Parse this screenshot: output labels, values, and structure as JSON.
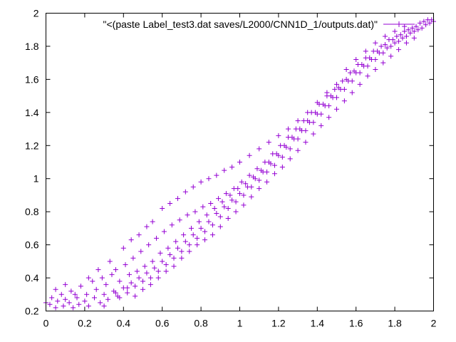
{
  "chart_data": {
    "type": "scatter",
    "title": "",
    "xlabel": "",
    "ylabel": "",
    "xlim": [
      0,
      2
    ],
    "ylim": [
      0.2,
      2
    ],
    "x_ticks": [
      "0",
      "0.2",
      "0.4",
      "0.6",
      "0.8",
      "1",
      "1.2",
      "1.4",
      "1.6",
      "1.8",
      "2"
    ],
    "y_ticks": [
      "0.2",
      "0.4",
      "0.6",
      "0.8",
      "1",
      "1.2",
      "1.4",
      "1.6",
      "1.8",
      "2"
    ],
    "grid": false,
    "legend_position": "top-left",
    "series": [
      {
        "name": "\"<(paste Label_test3.dat saves/L2000/CNN1D_1/outputs.dat)\"",
        "color": "#9400d3",
        "marker": "plus",
        "points": [
          [
            0.0,
            0.25
          ],
          [
            0.02,
            0.24
          ],
          [
            0.03,
            0.28
          ],
          [
            0.05,
            0.22
          ],
          [
            0.06,
            0.26
          ],
          [
            0.08,
            0.3
          ],
          [
            0.09,
            0.23
          ],
          [
            0.1,
            0.27
          ],
          [
            0.12,
            0.25
          ],
          [
            0.13,
            0.32
          ],
          [
            0.14,
            0.22
          ],
          [
            0.16,
            0.28
          ],
          [
            0.17,
            0.24
          ],
          [
            0.18,
            0.35
          ],
          [
            0.2,
            0.26
          ],
          [
            0.21,
            0.3
          ],
          [
            0.22,
            0.23
          ],
          [
            0.24,
            0.38
          ],
          [
            0.25,
            0.28
          ],
          [
            0.26,
            0.33
          ],
          [
            0.28,
            0.25
          ],
          [
            0.29,
            0.4
          ],
          [
            0.3,
            0.3
          ],
          [
            0.31,
            0.36
          ],
          [
            0.32,
            0.27
          ],
          [
            0.34,
            0.42
          ],
          [
            0.35,
            0.32
          ],
          [
            0.36,
            0.45
          ],
          [
            0.37,
            0.29
          ],
          [
            0.38,
            0.38
          ],
          [
            0.4,
            0.34
          ],
          [
            0.41,
            0.48
          ],
          [
            0.42,
            0.31
          ],
          [
            0.43,
            0.42
          ],
          [
            0.44,
            0.37
          ],
          [
            0.45,
            0.52
          ],
          [
            0.46,
            0.35
          ],
          [
            0.47,
            0.44
          ],
          [
            0.48,
            0.4
          ],
          [
            0.49,
            0.56
          ],
          [
            0.5,
            0.38
          ],
          [
            0.51,
            0.47
          ],
          [
            0.52,
            0.43
          ],
          [
            0.53,
            0.6
          ],
          [
            0.54,
            0.4
          ],
          [
            0.55,
            0.5
          ],
          [
            0.56,
            0.46
          ],
          [
            0.57,
            0.64
          ],
          [
            0.58,
            0.44
          ],
          [
            0.59,
            0.55
          ],
          [
            0.6,
            0.5
          ],
          [
            0.61,
            0.68
          ],
          [
            0.62,
            0.48
          ],
          [
            0.63,
            0.58
          ],
          [
            0.64,
            0.54
          ],
          [
            0.65,
            0.72
          ],
          [
            0.66,
            0.52
          ],
          [
            0.67,
            0.62
          ],
          [
            0.68,
            0.58
          ],
          [
            0.69,
            0.75
          ],
          [
            0.7,
            0.56
          ],
          [
            0.71,
            0.66
          ],
          [
            0.72,
            0.62
          ],
          [
            0.73,
            0.78
          ],
          [
            0.74,
            0.6
          ],
          [
            0.75,
            0.7
          ],
          [
            0.76,
            0.66
          ],
          [
            0.77,
            0.8
          ],
          [
            0.78,
            0.64
          ],
          [
            0.79,
            0.74
          ],
          [
            0.8,
            0.7
          ],
          [
            0.81,
            0.83
          ],
          [
            0.82,
            0.68
          ],
          [
            0.83,
            0.78
          ],
          [
            0.84,
            0.74
          ],
          [
            0.85,
            0.85
          ],
          [
            0.86,
            0.72
          ],
          [
            0.87,
            0.82
          ],
          [
            0.88,
            0.79
          ],
          [
            0.89,
            0.88
          ],
          [
            0.9,
            0.77
          ],
          [
            0.91,
            0.86
          ],
          [
            0.92,
            0.83
          ],
          [
            0.93,
            0.91
          ],
          [
            0.94,
            0.82
          ],
          [
            0.95,
            0.9
          ],
          [
            0.96,
            0.87
          ],
          [
            0.97,
            0.94
          ],
          [
            0.98,
            0.86
          ],
          [
            0.99,
            0.94
          ],
          [
            1.0,
            0.91
          ],
          [
            1.01,
            0.98
          ],
          [
            1.02,
            0.9
          ],
          [
            1.03,
            0.97
          ],
          [
            1.04,
            0.95
          ],
          [
            1.05,
            1.02
          ],
          [
            1.06,
            0.95
          ],
          [
            1.07,
            1.01
          ],
          [
            1.08,
            1.0
          ],
          [
            1.09,
            1.06
          ],
          [
            1.1,
            0.99
          ],
          [
            1.11,
            1.05
          ],
          [
            1.12,
            1.04
          ],
          [
            1.13,
            1.1
          ],
          [
            1.14,
            1.04
          ],
          [
            1.15,
            1.1
          ],
          [
            1.16,
            1.09
          ],
          [
            1.17,
            1.15
          ],
          [
            1.18,
            1.08
          ],
          [
            1.19,
            1.15
          ],
          [
            1.2,
            1.14
          ],
          [
            1.21,
            1.2
          ],
          [
            1.22,
            1.13
          ],
          [
            1.23,
            1.2
          ],
          [
            1.24,
            1.19
          ],
          [
            1.25,
            1.25
          ],
          [
            1.26,
            1.18
          ],
          [
            1.27,
            1.25
          ],
          [
            1.28,
            1.24
          ],
          [
            1.29,
            1.3
          ],
          [
            1.3,
            1.24
          ],
          [
            1.31,
            1.3
          ],
          [
            1.32,
            1.29
          ],
          [
            1.33,
            1.35
          ],
          [
            1.34,
            1.29
          ],
          [
            1.35,
            1.35
          ],
          [
            1.36,
            1.34
          ],
          [
            1.37,
            1.4
          ],
          [
            1.38,
            1.34
          ],
          [
            1.39,
            1.4
          ],
          [
            1.4,
            1.39
          ],
          [
            1.41,
            1.45
          ],
          [
            1.42,
            1.39
          ],
          [
            1.43,
            1.45
          ],
          [
            1.44,
            1.44
          ],
          [
            1.45,
            1.5
          ],
          [
            1.46,
            1.44
          ],
          [
            1.47,
            1.5
          ],
          [
            1.48,
            1.49
          ],
          [
            1.49,
            1.54
          ],
          [
            1.5,
            1.49
          ],
          [
            1.51,
            1.55
          ],
          [
            1.52,
            1.54
          ],
          [
            1.53,
            1.59
          ],
          [
            1.54,
            1.54
          ],
          [
            1.55,
            1.6
          ],
          [
            1.56,
            1.59
          ],
          [
            1.57,
            1.64
          ],
          [
            1.58,
            1.59
          ],
          [
            1.59,
            1.65
          ],
          [
            1.6,
            1.64
          ],
          [
            1.61,
            1.69
          ],
          [
            1.62,
            1.64
          ],
          [
            1.63,
            1.69
          ],
          [
            1.64,
            1.68
          ],
          [
            1.65,
            1.73
          ],
          [
            1.66,
            1.68
          ],
          [
            1.67,
            1.73
          ],
          [
            1.68,
            1.72
          ],
          [
            1.69,
            1.77
          ],
          [
            1.7,
            1.72
          ],
          [
            1.71,
            1.77
          ],
          [
            1.72,
            1.76
          ],
          [
            1.73,
            1.8
          ],
          [
            1.74,
            1.76
          ],
          [
            1.75,
            1.81
          ],
          [
            1.76,
            1.79
          ],
          [
            1.77,
            1.84
          ],
          [
            1.78,
            1.8
          ],
          [
            1.79,
            1.84
          ],
          [
            1.8,
            1.82
          ],
          [
            1.81,
            1.86
          ],
          [
            1.82,
            1.83
          ],
          [
            1.83,
            1.87
          ],
          [
            1.84,
            1.85
          ],
          [
            1.85,
            1.89
          ],
          [
            1.86,
            1.86
          ],
          [
            1.87,
            1.9
          ],
          [
            1.88,
            1.88
          ],
          [
            1.89,
            1.91
          ],
          [
            1.9,
            1.89
          ],
          [
            1.91,
            1.92
          ],
          [
            1.92,
            1.9
          ],
          [
            1.93,
            1.94
          ],
          [
            1.94,
            1.91
          ],
          [
            1.95,
            1.95
          ],
          [
            1.96,
            1.93
          ],
          [
            1.97,
            1.96
          ],
          [
            1.98,
            1.94
          ],
          [
            1.99,
            1.96
          ],
          [
            2.0,
            1.95
          ],
          [
            0.05,
            0.33
          ],
          [
            0.1,
            0.36
          ],
          [
            0.15,
            0.3
          ],
          [
            0.22,
            0.4
          ],
          [
            0.27,
            0.45
          ],
          [
            0.33,
            0.5
          ],
          [
            0.36,
            0.31
          ],
          [
            0.4,
            0.58
          ],
          [
            0.44,
            0.63
          ],
          [
            0.48,
            0.66
          ],
          [
            0.52,
            0.71
          ],
          [
            0.55,
            0.74
          ],
          [
            0.6,
            0.82
          ],
          [
            0.64,
            0.85
          ],
          [
            0.68,
            0.88
          ],
          [
            0.72,
            0.92
          ],
          [
            0.76,
            0.95
          ],
          [
            0.8,
            0.98
          ],
          [
            0.84,
            1.0
          ],
          [
            0.88,
            1.02
          ],
          [
            0.92,
            1.05
          ],
          [
            0.96,
            1.07
          ],
          [
            1.0,
            1.1
          ],
          [
            1.05,
            1.14
          ],
          [
            1.1,
            1.18
          ],
          [
            1.15,
            1.22
          ],
          [
            1.2,
            1.26
          ],
          [
            1.25,
            1.3
          ],
          [
            1.3,
            1.35
          ],
          [
            1.35,
            1.4
          ],
          [
            1.4,
            1.46
          ],
          [
            1.45,
            1.52
          ],
          [
            1.5,
            1.57
          ],
          [
            1.55,
            1.66
          ],
          [
            1.6,
            1.72
          ],
          [
            1.65,
            1.77
          ],
          [
            1.7,
            1.82
          ],
          [
            1.75,
            1.86
          ],
          [
            1.8,
            1.89
          ],
          [
            1.85,
            1.92
          ],
          [
            0.3,
            0.23
          ],
          [
            0.38,
            0.28
          ],
          [
            0.42,
            0.34
          ],
          [
            0.46,
            0.29
          ],
          [
            0.5,
            0.33
          ],
          [
            0.54,
            0.36
          ],
          [
            0.58,
            0.4
          ],
          [
            0.62,
            0.44
          ],
          [
            0.66,
            0.47
          ],
          [
            0.7,
            0.52
          ],
          [
            0.74,
            0.56
          ],
          [
            0.78,
            0.6
          ],
          [
            0.82,
            0.63
          ],
          [
            0.86,
            0.66
          ],
          [
            0.9,
            0.71
          ],
          [
            0.94,
            0.76
          ],
          [
            0.98,
            0.8
          ],
          [
            1.02,
            0.84
          ],
          [
            1.06,
            0.89
          ],
          [
            1.1,
            0.94
          ],
          [
            1.14,
            0.98
          ],
          [
            1.18,
            1.03
          ],
          [
            1.22,
            1.07
          ],
          [
            1.26,
            1.12
          ],
          [
            1.3,
            1.17
          ],
          [
            1.34,
            1.22
          ],
          [
            1.38,
            1.27
          ],
          [
            1.42,
            1.32
          ],
          [
            1.46,
            1.37
          ],
          [
            1.5,
            1.42
          ],
          [
            1.54,
            1.47
          ],
          [
            1.58,
            1.52
          ],
          [
            1.62,
            1.57
          ],
          [
            1.66,
            1.62
          ],
          [
            1.7,
            1.66
          ],
          [
            1.74,
            1.7
          ],
          [
            1.78,
            1.74
          ],
          [
            1.82,
            1.78
          ],
          [
            1.86,
            1.82
          ],
          [
            1.9,
            1.85
          ]
        ]
      }
    ]
  }
}
